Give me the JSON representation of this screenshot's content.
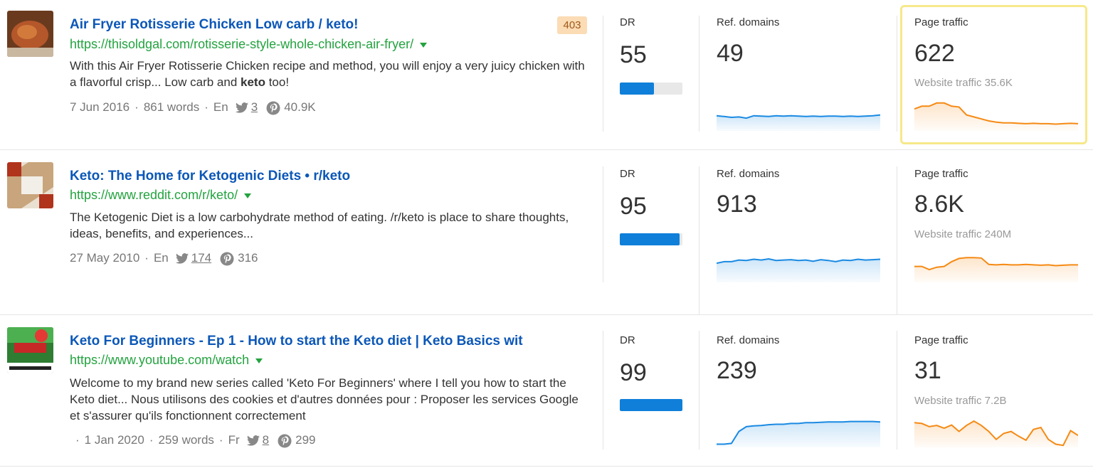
{
  "results": [
    {
      "title": "Air Fryer Rotisserie Chicken Low carb / keto!",
      "url": "https://thisoldgal.com/rotisserie-style-whole-chicken-air-fryer/",
      "desc_before": "With this Air Fryer Rotisserie Chicken recipe and method, you will enjoy a very juicy chicken with a flavorful crisp... Low carb and ",
      "desc_bold": "keto",
      "desc_after": " too!",
      "date": "7 Jun 2016",
      "words": "861 words",
      "lang": "En",
      "twitter": "3",
      "pinterest": "40.9K",
      "status_badge": "403",
      "dr_label": "DR",
      "dr": "55",
      "dr_fraction": 0.55,
      "ref_label": "Ref. domains",
      "ref_domains": "49",
      "traffic_label": "Page traffic",
      "page_traffic": "622",
      "website_traffic": "Website traffic 35.6K",
      "ref_trend": [
        0.38,
        0.36,
        0.34,
        0.35,
        0.32,
        0.38,
        0.37,
        0.36,
        0.38,
        0.37,
        0.38,
        0.37,
        0.36,
        0.37,
        0.36,
        0.37,
        0.37,
        0.36,
        0.37,
        0.36,
        0.37,
        0.38,
        0.4
      ],
      "traffic_trend": [
        0.55,
        0.62,
        0.62,
        0.7,
        0.7,
        0.62,
        0.6,
        0.4,
        0.35,
        0.3,
        0.25,
        0.22,
        0.2,
        0.2,
        0.19,
        0.18,
        0.19,
        0.18,
        0.18,
        0.17,
        0.18,
        0.19,
        0.18
      ]
    },
    {
      "title": "Keto: The Home for Ketogenic Diets • r/keto",
      "url": "https://www.reddit.com/r/keto/",
      "desc_before": "The Ketogenic Diet is a low carbohydrate method of eating. /r/keto is place to share thoughts, ideas, benefits, and experiences...",
      "desc_bold": "",
      "desc_after": "",
      "date": "27 May 2010",
      "words": "",
      "lang": "En",
      "twitter": "174",
      "pinterest": "316",
      "status_badge": "",
      "dr_label": "DR",
      "dr": "95",
      "dr_fraction": 0.95,
      "ref_label": "Ref. domains",
      "ref_domains": "913",
      "traffic_label": "Page traffic",
      "page_traffic": "8.6K",
      "website_traffic": "Website traffic 240M",
      "ref_trend": [
        0.48,
        0.52,
        0.52,
        0.56,
        0.55,
        0.58,
        0.56,
        0.59,
        0.55,
        0.56,
        0.57,
        0.55,
        0.56,
        0.53,
        0.57,
        0.55,
        0.52,
        0.56,
        0.55,
        0.58,
        0.56,
        0.57,
        0.58
      ],
      "traffic_trend": [
        0.4,
        0.4,
        0.32,
        0.38,
        0.4,
        0.52,
        0.6,
        0.62,
        0.62,
        0.61,
        0.45,
        0.44,
        0.45,
        0.44,
        0.44,
        0.45,
        0.44,
        0.43,
        0.44,
        0.42,
        0.43,
        0.44,
        0.44
      ]
    },
    {
      "title": "Keto For Beginners - Ep 1 - How to start the Keto diet | Keto Basics wit",
      "url": "https://www.youtube.com/watch",
      "desc_before": "Welcome to my brand new series called 'Keto For Beginners' where I tell you how to start the Keto diet... Nous utilisons des cookies et d'autres données pour : Proposer les services Google et s'assurer qu'ils fonctionnent correctement",
      "desc_bold": "",
      "desc_after": "",
      "date": "1 Jan 2020",
      "words": "259 words",
      "lang": "Fr",
      "twitter": "8",
      "pinterest": "299",
      "status_badge": "",
      "dr_label": "DR",
      "dr": "99",
      "dr_fraction": 1.0,
      "ref_label": "Ref. domains",
      "ref_domains": "239",
      "traffic_label": "Page traffic",
      "page_traffic": "31",
      "website_traffic": "Website traffic 7.2B",
      "ref_trend": [
        0.08,
        0.08,
        0.1,
        0.4,
        0.52,
        0.54,
        0.55,
        0.57,
        0.58,
        0.58,
        0.6,
        0.6,
        0.62,
        0.62,
        0.63,
        0.64,
        0.64,
        0.64,
        0.65,
        0.65,
        0.65,
        0.65,
        0.64
      ],
      "traffic_trend": [
        0.62,
        0.6,
        0.52,
        0.55,
        0.48,
        0.56,
        0.4,
        0.55,
        0.66,
        0.55,
        0.4,
        0.2,
        0.35,
        0.4,
        0.28,
        0.18,
        0.45,
        0.5,
        0.2,
        0.08,
        0.05,
        0.42,
        0.3
      ]
    }
  ],
  "colors": {
    "link": "#0b57b8",
    "url": "#23a33f",
    "dr_bar": "#0f7fd9",
    "ref_line": "#1a8ae2",
    "traffic_line": "#f58a14",
    "highlight": "#f7e88a"
  }
}
